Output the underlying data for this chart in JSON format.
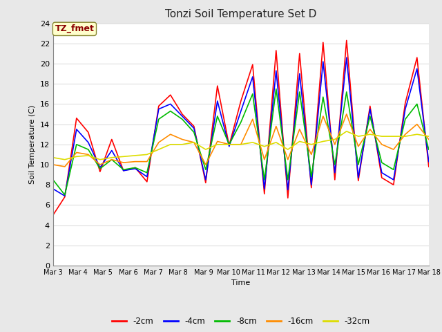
{
  "title": "Tonzi Soil Temperature Set D",
  "xlabel": "Time",
  "ylabel": "Soil Temperature (C)",
  "annotation": "TZ_fmet",
  "annotation_color": "#8B0000",
  "annotation_bg": "#FFFFCC",
  "ylim": [
    0,
    24
  ],
  "yticks": [
    0,
    2,
    4,
    6,
    8,
    10,
    12,
    14,
    16,
    18,
    20,
    22,
    24
  ],
  "legend": [
    "-2cm",
    "-4cm",
    "-8cm",
    "-16cm",
    "-32cm"
  ],
  "line_colors": [
    "#FF0000",
    "#0000FF",
    "#00BB00",
    "#FF8C00",
    "#DDDD00"
  ],
  "plot_bg_color": "#FFFFFF",
  "fig_bg_color": "#E8E8E8",
  "grid_color": "#DDDDDD",
  "x_labels": [
    "Mar 3",
    "Mar 4",
    "Mar 5",
    "Mar 6",
    "Mar 7",
    "Mar 8",
    "Mar 9",
    "Mar 10",
    "Mar 11",
    "Mar 12",
    "Mar 13",
    "Mar 14",
    "Mar 15",
    "Mar 16",
    "Mar 17",
    "Mar 18"
  ],
  "n_days": 16,
  "series": {
    "d2cm": [
      5.0,
      6.8,
      14.6,
      13.2,
      9.3,
      12.5,
      9.4,
      9.7,
      8.3,
      15.8,
      16.9,
      15.0,
      13.8,
      8.2,
      17.8,
      11.9,
      16.3,
      19.9,
      7.1,
      21.3,
      6.7,
      21.0,
      7.7,
      22.1,
      8.5,
      22.3,
      8.4,
      15.8,
      8.7,
      8.0,
      16.1,
      20.6,
      9.8
    ],
    "d4cm": [
      7.6,
      6.9,
      13.5,
      12.2,
      9.7,
      11.4,
      9.4,
      9.6,
      8.8,
      15.5,
      16.0,
      14.8,
      13.6,
      8.5,
      16.3,
      11.8,
      15.3,
      18.7,
      7.6,
      19.3,
      7.5,
      19.0,
      8.0,
      20.2,
      9.2,
      20.6,
      8.7,
      15.5,
      9.2,
      8.5,
      15.5,
      19.5,
      10.3
    ],
    "d8cm": [
      8.5,
      7.0,
      12.0,
      11.5,
      9.6,
      10.5,
      9.5,
      9.7,
      9.2,
      14.5,
      15.3,
      14.5,
      13.2,
      9.5,
      14.8,
      12.0,
      14.2,
      17.0,
      8.5,
      17.5,
      8.5,
      17.2,
      8.8,
      16.7,
      10.0,
      17.2,
      10.0,
      14.8,
      10.2,
      9.5,
      14.5,
      16.0,
      11.5
    ],
    "d16cm": [
      10.0,
      9.8,
      11.2,
      11.0,
      10.0,
      10.5,
      10.2,
      10.3,
      10.3,
      12.2,
      13.0,
      12.5,
      12.2,
      10.0,
      12.3,
      12.0,
      12.0,
      14.5,
      10.5,
      13.8,
      10.5,
      13.5,
      11.0,
      14.8,
      12.0,
      15.0,
      11.8,
      13.5,
      12.0,
      11.5,
      13.0,
      14.0,
      12.5
    ],
    "d32cm": [
      10.7,
      10.5,
      10.8,
      10.9,
      10.5,
      10.7,
      10.8,
      10.9,
      11.0,
      11.5,
      12.0,
      12.0,
      12.2,
      11.5,
      12.0,
      12.0,
      12.0,
      12.2,
      11.8,
      12.2,
      11.5,
      12.3,
      12.0,
      12.3,
      12.5,
      13.3,
      12.8,
      13.0,
      12.8,
      12.8,
      12.8,
      13.0,
      12.8
    ]
  }
}
